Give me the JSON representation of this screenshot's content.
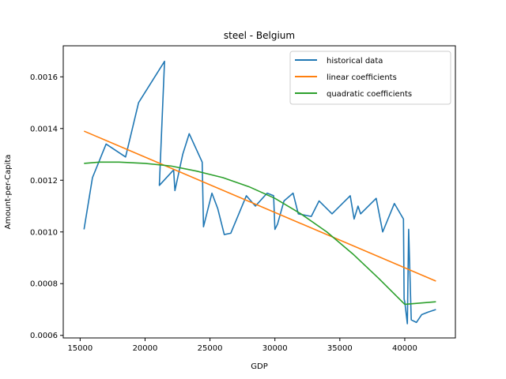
{
  "chart_data": {
    "type": "line",
    "title": "steel - Belgium",
    "xlabel": "GDP",
    "ylabel": "Amount-per-Capita",
    "xlim": [
      13700,
      43900
    ],
    "ylim": [
      0.00059,
      0.00172
    ],
    "x_ticks": [
      15000,
      20000,
      25000,
      30000,
      35000,
      40000
    ],
    "x_tick_labels": [
      "15000",
      "20000",
      "25000",
      "30000",
      "35000",
      "40000"
    ],
    "y_ticks": [
      0.0006,
      0.0008,
      0.001,
      0.0012,
      0.0014,
      0.0016
    ],
    "y_tick_labels": [
      "0.0006",
      "0.0008",
      "0.0010",
      "0.0012",
      "0.0014",
      "0.0016"
    ],
    "grid": false,
    "legend_position": "top-right",
    "series": [
      {
        "name": "historical data",
        "color": "#1f77b4",
        "x": [
          15300,
          15950,
          17000,
          18500,
          19500,
          21500,
          21100,
          22200,
          22300,
          22900,
          23400,
          24400,
          24500,
          25150,
          25600,
          26100,
          26600,
          27800,
          28500,
          29400,
          29900,
          30000,
          30200,
          30700,
          31400,
          31800,
          32800,
          33400,
          34400,
          35800,
          36100,
          36400,
          36600,
          37800,
          38300,
          39200,
          39900,
          39950,
          40000,
          40200,
          40300,
          40500,
          40900,
          41300,
          41800,
          42400
        ],
        "y": [
          0.00101,
          0.00121,
          0.00134,
          0.00129,
          0.0015,
          0.00166,
          0.00118,
          0.00124,
          0.00116,
          0.0013,
          0.00138,
          0.00127,
          0.00102,
          0.00115,
          0.00109,
          0.00099,
          0.000995,
          0.00114,
          0.0011,
          0.00115,
          0.00114,
          0.00101,
          0.00103,
          0.00112,
          0.00115,
          0.00107,
          0.00106,
          0.00112,
          0.00107,
          0.00114,
          0.00105,
          0.0011,
          0.00107,
          0.00113,
          0.001,
          0.00111,
          0.00105,
          0.00074,
          0.00073,
          0.000645,
          0.00101,
          0.00066,
          0.00065,
          0.00068,
          0.00069,
          0.0007
        ]
      },
      {
        "name": "linear coefficients",
        "color": "#ff7f0e",
        "x": [
          15300,
          42400
        ],
        "y": [
          0.00139,
          0.00081
        ]
      },
      {
        "name": "quadratic coefficients",
        "color": "#2ca02c",
        "x": [
          15300,
          16500,
          18000,
          20000,
          22000,
          24000,
          26000,
          28000,
          30000,
          32000,
          34000,
          36000,
          38000,
          40000,
          42400
        ],
        "y": [
          0.001265,
          0.00127,
          0.00127,
          0.001265,
          0.001255,
          0.001235,
          0.00121,
          0.001175,
          0.00113,
          0.00107,
          0.001,
          0.000915,
          0.00082,
          0.00072,
          0.00073
        ]
      }
    ]
  }
}
